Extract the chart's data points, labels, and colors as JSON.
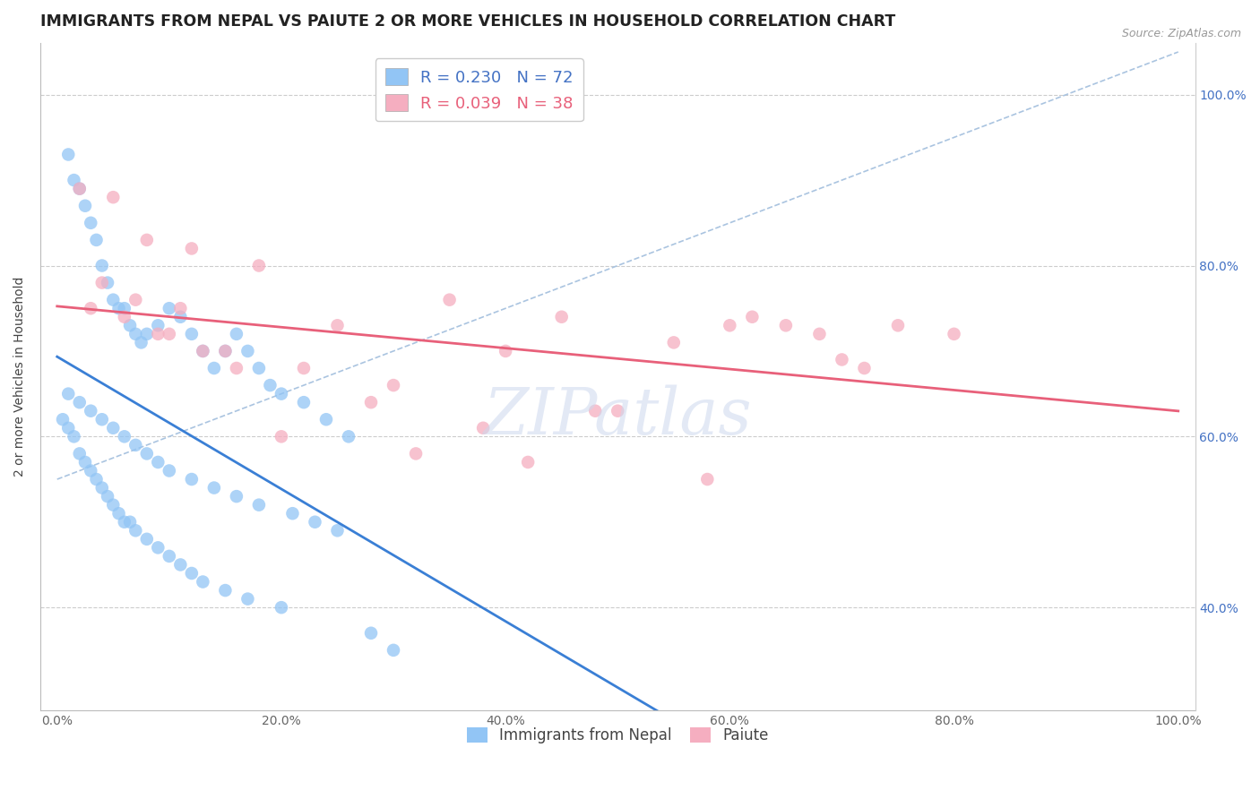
{
  "title": "IMMIGRANTS FROM NEPAL VS PAIUTE 2 OR MORE VEHICLES IN HOUSEHOLD CORRELATION CHART",
  "source": "Source: ZipAtlas.com",
  "ylabel": "2 or more Vehicles in Household",
  "legend_blue_label": "Immigrants from Nepal",
  "legend_pink_label": "Paiute",
  "R_blue": 0.23,
  "N_blue": 72,
  "R_pink": 0.039,
  "N_pink": 38,
  "blue_color": "#92c5f5",
  "pink_color": "#f5aec0",
  "blue_line_color": "#3a7fd5",
  "pink_line_color": "#e8607a",
  "dashed_line_color": "#aac4e0",
  "watermark": "ZIPatlas",
  "blue_x": [
    0.1,
    0.15,
    0.2,
    0.25,
    0.3,
    0.35,
    0.4,
    0.45,
    0.5,
    0.55,
    0.6,
    0.65,
    0.7,
    0.75,
    0.8,
    0.9,
    1.0,
    1.1,
    1.2,
    1.3,
    1.4,
    1.5,
    1.6,
    1.7,
    1.8,
    1.9,
    2.0,
    2.2,
    2.4,
    2.6,
    0.05,
    0.1,
    0.15,
    0.2,
    0.25,
    0.3,
    0.35,
    0.4,
    0.45,
    0.5,
    0.55,
    0.6,
    0.65,
    0.7,
    0.8,
    0.9,
    1.0,
    1.1,
    1.2,
    1.3,
    1.5,
    1.7,
    2.0,
    0.1,
    0.2,
    0.3,
    0.4,
    0.5,
    0.6,
    0.7,
    0.8,
    0.9,
    1.0,
    1.2,
    1.4,
    1.6,
    1.8,
    2.1,
    2.3,
    2.5,
    2.8,
    3.0
  ],
  "blue_y": [
    93,
    90,
    89,
    87,
    85,
    83,
    80,
    78,
    76,
    75,
    75,
    73,
    72,
    71,
    72,
    73,
    75,
    74,
    72,
    70,
    68,
    70,
    72,
    70,
    68,
    66,
    65,
    64,
    62,
    60,
    62,
    61,
    60,
    58,
    57,
    56,
    55,
    54,
    53,
    52,
    51,
    50,
    50,
    49,
    48,
    47,
    46,
    45,
    44,
    43,
    42,
    41,
    40,
    65,
    64,
    63,
    62,
    61,
    60,
    59,
    58,
    57,
    56,
    55,
    54,
    53,
    52,
    51,
    50,
    49,
    37,
    35
  ],
  "pink_x": [
    0.2,
    0.5,
    0.8,
    1.2,
    1.8,
    2.5,
    3.5,
    4.5,
    5.5,
    6.5,
    7.5,
    0.3,
    0.6,
    1.0,
    1.5,
    2.2,
    3.0,
    4.0,
    5.0,
    6.0,
    7.0,
    0.4,
    0.7,
    1.1,
    1.6,
    2.8,
    3.8,
    4.8,
    6.8,
    0.9,
    1.3,
    2.0,
    3.2,
    4.2,
    5.8,
    6.2,
    7.2,
    8.0
  ],
  "pink_y": [
    89,
    88,
    83,
    82,
    80,
    73,
    76,
    74,
    71,
    73,
    73,
    75,
    74,
    72,
    70,
    68,
    66,
    70,
    63,
    73,
    69,
    78,
    76,
    75,
    68,
    64,
    61,
    63,
    72,
    72,
    70,
    60,
    58,
    57,
    55,
    74,
    68,
    72
  ],
  "xlim_data": 10,
  "ylim_min": 28,
  "ylim_max": 106,
  "ytick_positions": [
    40,
    60,
    80,
    100
  ],
  "ytick_labels": [
    "40.0%",
    "60.0%",
    "80.0%",
    "100.0%"
  ],
  "xtick_positions": [
    0,
    2,
    4,
    6,
    8,
    10
  ],
  "xtick_labels": [
    "0.0%",
    "20.0%",
    "40.0%",
    "60.0%",
    "80.0%",
    "100.0%"
  ],
  "grid_color": "#cccccc",
  "bg_color": "#ffffff",
  "title_fontsize": 12.5,
  "axis_label_fontsize": 10,
  "tick_fontsize": 10,
  "legend_fontsize": 13
}
